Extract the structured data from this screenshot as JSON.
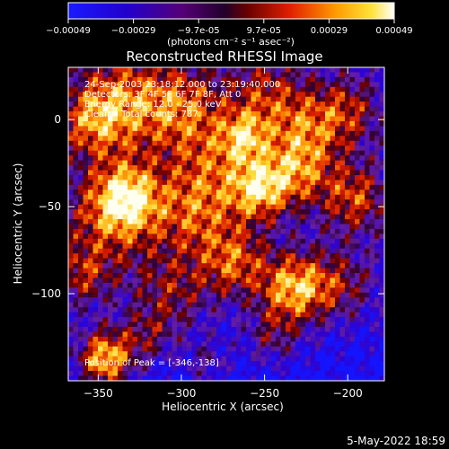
{
  "colorbar": {
    "ticks": [
      "-0.00049",
      "-0.00029",
      "-9.7e-05",
      "9.7e-05",
      "0.00029",
      "0.00049"
    ],
    "unit_label": "(photons cm⁻² s⁻¹ asec⁻²)",
    "min": -0.00049,
    "max": 0.00049
  },
  "chart_data": {
    "type": "heatmap",
    "title": "Reconstructed RHESSI Image",
    "xlabel": "Heliocentric X (arcsec)",
    "ylabel": "Heliocentric Y (arcsec)",
    "xlim": [
      -368,
      -178
    ],
    "ylim": [
      -150,
      30
    ],
    "x_ticks": [
      -350,
      -300,
      -250,
      -200
    ],
    "x_tick_labels": [
      "−350",
      "−300",
      "−250",
      "−200"
    ],
    "y_ticks": [
      0,
      -50,
      -100
    ],
    "y_tick_labels": [
      "0",
      "−50",
      "−100"
    ],
    "annotations": [
      "24-Sep-2003 23:18:12.000 to 23:19:40.000",
      "Detectors: 3F 4F 5F 6F 7F 8F, Att 0",
      "Energy Range: 12.0 - 25.0 keV",
      "Clean    Total counts: 787.",
      "Position of Peak = [-346,-138]"
    ],
    "peak": {
      "x": -346,
      "y": -138
    },
    "colormap": "blue-purple-red-yellow-white",
    "grid": false
  },
  "footer": {
    "date": "5-May-2022 18:59"
  }
}
